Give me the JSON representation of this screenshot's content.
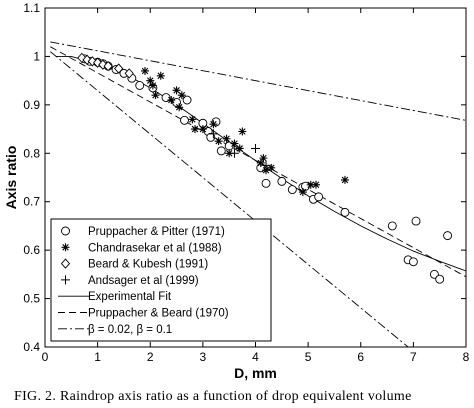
{
  "caption": "FIG. 2. Raindrop axis ratio as a function of drop equivalent volume",
  "chart_data": {
    "type": "scatter",
    "title": "",
    "xlabel": "D, mm",
    "ylabel": "Axis ratio",
    "xlim": [
      0,
      8
    ],
    "ylim": [
      0.4,
      1.1
    ],
    "xticks": [
      0,
      1,
      2,
      3,
      4,
      5,
      6,
      7,
      8
    ],
    "yticks": [
      0.4,
      0.5,
      0.6,
      0.7,
      0.8,
      0.9,
      1.0,
      1.1
    ],
    "xtick_labels": [
      "0",
      "1",
      "2",
      "3",
      "4",
      "5",
      "6",
      "7",
      "8"
    ],
    "ytick_labels": [
      "0.4",
      "0.5",
      "0.6",
      "0.7",
      "0.8",
      "0.9",
      "1",
      "1.1"
    ],
    "grid": false,
    "legend_position": "bottom-left",
    "series": [
      {
        "name": "Pruppacher & Pitter (1971)",
        "marker": "circle",
        "points": [
          [
            0.75,
            0.995
          ],
          [
            0.85,
            0.99
          ],
          [
            1.0,
            0.988
          ],
          [
            1.1,
            0.985
          ],
          [
            1.2,
            0.98
          ],
          [
            1.35,
            0.973
          ],
          [
            1.5,
            0.965
          ],
          [
            1.65,
            0.955
          ],
          [
            1.8,
            0.94
          ],
          [
            2.05,
            0.935
          ],
          [
            2.3,
            0.915
          ],
          [
            2.5,
            0.905
          ],
          [
            2.65,
            0.868
          ],
          [
            2.7,
            0.91
          ],
          [
            3.0,
            0.862
          ],
          [
            3.1,
            0.845
          ],
          [
            3.15,
            0.833
          ],
          [
            3.25,
            0.865
          ],
          [
            3.35,
            0.805
          ],
          [
            3.5,
            0.815
          ],
          [
            4.1,
            0.77
          ],
          [
            4.2,
            0.738
          ],
          [
            4.5,
            0.742
          ],
          [
            4.7,
            0.725
          ],
          [
            4.9,
            0.73
          ],
          [
            4.95,
            0.732
          ],
          [
            5.1,
            0.705
          ],
          [
            5.2,
            0.71
          ],
          [
            5.7,
            0.678
          ],
          [
            6.6,
            0.65
          ],
          [
            6.9,
            0.58
          ],
          [
            7.0,
            0.576
          ],
          [
            7.05,
            0.66
          ],
          [
            7.4,
            0.55
          ],
          [
            7.5,
            0.54
          ],
          [
            7.65,
            0.63
          ]
        ]
      },
      {
        "name": "Chandrasekar et al (1988)",
        "marker": "asterisk",
        "points": [
          [
            1.9,
            0.97
          ],
          [
            2.0,
            0.95
          ],
          [
            2.05,
            0.94
          ],
          [
            2.1,
            0.92
          ],
          [
            2.2,
            0.96
          ],
          [
            2.4,
            0.91
          ],
          [
            2.5,
            0.93
          ],
          [
            2.55,
            0.895
          ],
          [
            2.6,
            0.92
          ],
          [
            2.8,
            0.87
          ],
          [
            2.85,
            0.85
          ],
          [
            3.0,
            0.85
          ],
          [
            3.2,
            0.86
          ],
          [
            3.3,
            0.825
          ],
          [
            3.45,
            0.83
          ],
          [
            3.5,
            0.8
          ],
          [
            3.6,
            0.82
          ],
          [
            3.7,
            0.81
          ],
          [
            3.75,
            0.845
          ],
          [
            4.1,
            0.78
          ],
          [
            4.15,
            0.79
          ],
          [
            4.2,
            0.765
          ],
          [
            4.3,
            0.77
          ],
          [
            4.9,
            0.72
          ],
          [
            5.05,
            0.735
          ],
          [
            5.15,
            0.735
          ],
          [
            5.7,
            0.745
          ]
        ]
      },
      {
        "name": "Beard & Kubesh (1991)",
        "marker": "diamond",
        "points": [
          [
            0.7,
            0.997
          ],
          [
            0.8,
            0.993
          ],
          [
            0.9,
            0.99
          ],
          [
            1.0,
            0.987
          ],
          [
            1.1,
            0.983
          ],
          [
            1.2,
            0.98
          ],
          [
            1.4,
            0.975
          ],
          [
            1.6,
            0.965
          ]
        ]
      },
      {
        "name": "Andsager et al (1999)",
        "marker": "plus",
        "points": [
          [
            3.2,
            0.84
          ],
          [
            3.6,
            0.8
          ],
          [
            4.0,
            0.81
          ],
          [
            4.2,
            0.775
          ]
        ]
      },
      {
        "name": "Experimental Fit",
        "style": "solid",
        "points": [
          [
            0.2,
            1.0
          ],
          [
            0.5,
            1.0
          ],
          [
            1.0,
            0.985
          ],
          [
            1.5,
            0.965
          ],
          [
            2.0,
            0.935
          ],
          [
            2.5,
            0.9
          ],
          [
            3.0,
            0.862
          ],
          [
            3.5,
            0.823
          ],
          [
            4.0,
            0.785
          ],
          [
            4.5,
            0.748
          ],
          [
            5.0,
            0.712
          ],
          [
            5.5,
            0.68
          ],
          [
            6.0,
            0.65
          ],
          [
            6.5,
            0.623
          ],
          [
            7.0,
            0.598
          ],
          [
            7.5,
            0.577
          ],
          [
            8.0,
            0.557
          ]
        ]
      },
      {
        "name": "Pruppacher & Beard (1970)",
        "style": "dashed",
        "points": [
          [
            0.1,
            1.02
          ],
          [
            8.0,
            0.545
          ]
        ]
      },
      {
        "name": "β = 0.02, β = 0.1",
        "style": "dashdot",
        "lines": [
          [
            [
              0.1,
              1.03
            ],
            [
              8.0,
              0.868
            ]
          ],
          [
            [
              0.1,
              1.01
            ],
            [
              6.9,
              0.4
            ]
          ]
        ]
      }
    ]
  }
}
